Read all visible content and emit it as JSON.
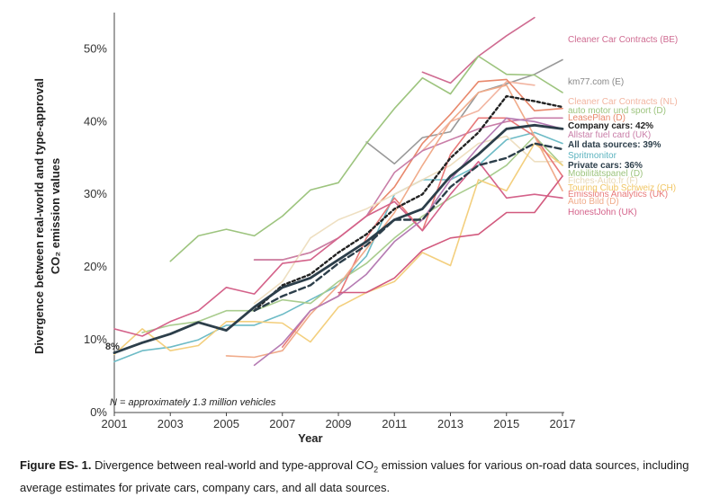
{
  "caption": {
    "label": "Figure ES- 1.",
    "text_before": "Divergence between real-world and type-approval CO",
    "subscript": "2",
    "text_after": " emission values for various on-road data sources, including average estimates for private cars, company cars, and all data sources."
  },
  "chart_data": {
    "type": "line",
    "xlabel": "Year",
    "ylabel_line1": "Divergence between real-world and type-approval",
    "ylabel_line2": "CO₂ emission values",
    "ylim": [
      0,
      54
    ],
    "xlim": [
      2001,
      2017
    ],
    "yticks": [
      0,
      10,
      20,
      30,
      40,
      50
    ],
    "ytick_labels": [
      "0%",
      "10%",
      "20%",
      "30%",
      "40%",
      "50%"
    ],
    "xticks": [
      2001,
      2003,
      2005,
      2007,
      2009,
      2011,
      2013,
      2015,
      2017
    ],
    "grid": false,
    "note": "N = approximately 1.3 million vehicles",
    "start_label": "8%",
    "series": [
      {
        "name": "Cleaner Car Contracts (BE)",
        "color": "#cf6b91",
        "width": 1.6,
        "dash": "",
        "bold": false,
        "x": [
          2012,
          2013,
          2014,
          2015,
          2016
        ],
        "values": [
          46.8,
          45.3,
          49.0,
          51.8,
          54.3
        ]
      },
      {
        "name": "km77.com (E)",
        "color": "#999999",
        "width": 1.6,
        "dash": "",
        "bold": false,
        "x": [
          2010,
          2011,
          2012,
          2013,
          2014,
          2015,
          2016,
          2017
        ],
        "values": [
          37.2,
          34.2,
          37.8,
          38.6,
          44.0,
          45.2,
          46.5,
          48.5
        ]
      },
      {
        "name": "Cleaner Car Contracts (NL)",
        "color": "#f2b5a1",
        "width": 1.6,
        "dash": "",
        "bold": false,
        "x": [
          2012,
          2013,
          2014,
          2015,
          2016
        ],
        "values": [
          36.0,
          40.0,
          41.5,
          45.5,
          45.0
        ]
      },
      {
        "name": "auto motor und sport (D)",
        "color": "#9dc47e",
        "width": 1.6,
        "dash": "",
        "bold": false,
        "x": [
          2003,
          2004,
          2005,
          2006,
          2007,
          2008,
          2009,
          2010,
          2011,
          2012,
          2013,
          2014,
          2015,
          2016,
          2017
        ],
        "values": [
          20.8,
          24.3,
          25.2,
          24.3,
          27.0,
          30.6,
          31.6,
          37.0,
          41.8,
          46.0,
          43.8,
          49.0,
          46.5,
          46.4,
          44.0
        ]
      },
      {
        "name": "LeasePlan (D)",
        "color": "#e8886c",
        "width": 1.6,
        "dash": "",
        "bold": false,
        "x": [
          2006,
          2007,
          2008,
          2009,
          2010,
          2011,
          2012,
          2013,
          2014,
          2015,
          2016,
          2017
        ],
        "values": [
          21.0,
          21.0,
          22.0,
          24.0,
          27.0,
          31.0,
          37.0,
          41.0,
          45.5,
          45.8,
          41.5,
          41.8
        ]
      },
      {
        "name": "Company cars: 42%",
        "color": "#222222",
        "width": 2.4,
        "dash": "3,3",
        "bold": true,
        "x": [
          2006,
          2007,
          2008,
          2009,
          2010,
          2011,
          2012,
          2013,
          2014,
          2015,
          2016,
          2017
        ],
        "values": [
          14.0,
          17.5,
          19.0,
          22.0,
          24.5,
          28.0,
          30.0,
          35.0,
          38.5,
          43.5,
          42.8,
          42.0
        ]
      },
      {
        "name": "Allstar fuel card (UK)",
        "color": "#c97ea8",
        "width": 1.6,
        "dash": "",
        "bold": false,
        "x": [
          2006,
          2007,
          2008,
          2009,
          2010,
          2011,
          2012,
          2013,
          2014,
          2015,
          2016,
          2017
        ],
        "values": [
          21.0,
          21.0,
          22.0,
          24.0,
          27.0,
          33.0,
          36.0,
          37.5,
          39.0,
          40.0,
          40.5,
          40.5
        ]
      },
      {
        "name": "All data sources: 39%",
        "color": "#2c3e4a",
        "width": 2.8,
        "dash": "",
        "bold": true,
        "x": [
          2001,
          2002,
          2003,
          2004,
          2005,
          2006,
          2007,
          2008,
          2009,
          2010,
          2011,
          2012,
          2013,
          2014,
          2015,
          2016,
          2017
        ],
        "values": [
          8.2,
          9.6,
          10.8,
          12.4,
          11.3,
          14.5,
          17.2,
          18.5,
          21.0,
          23.5,
          26.5,
          28.0,
          32.5,
          35.5,
          39.0,
          39.5,
          39.0
        ]
      },
      {
        "name": "Spritmonitor",
        "color": "#6dbbc6",
        "width": 1.6,
        "dash": "",
        "bold": false,
        "x": [
          2001,
          2002,
          2003,
          2004,
          2005,
          2006,
          2007,
          2008,
          2009,
          2010,
          2011,
          2012,
          2013,
          2014,
          2015,
          2016,
          2017
        ],
        "values": [
          7.0,
          8.5,
          9.0,
          10.0,
          12.0,
          12.0,
          13.5,
          15.5,
          17.5,
          21.5,
          30.0,
          32.0,
          32.0,
          34.0,
          37.5,
          38.5,
          37.0
        ]
      },
      {
        "name": "Private cars: 36%",
        "color": "#2c3e4a",
        "width": 2.4,
        "dash": "7,4",
        "bold": true,
        "x": [
          2006,
          2007,
          2008,
          2009,
          2010,
          2011,
          2012,
          2013,
          2014,
          2015,
          2016,
          2017
        ],
        "values": [
          14.0,
          16.0,
          17.5,
          20.5,
          23.0,
          26.5,
          26.5,
          31.0,
          34.0,
          35.0,
          37.0,
          36.2
        ]
      },
      {
        "name": "Mobilitätspanel (D)",
        "color": "#a9cc8e",
        "width": 1.6,
        "dash": "",
        "bold": false,
        "x": [
          2002,
          2003,
          2004,
          2005,
          2006,
          2007,
          2008,
          2009,
          2010,
          2011,
          2012,
          2013,
          2014,
          2015,
          2016,
          2017
        ],
        "values": [
          11.0,
          12.0,
          12.5,
          14.0,
          14.0,
          15.5,
          15.0,
          18.0,
          20.5,
          24.0,
          27.0,
          29.5,
          31.5,
          34.0,
          38.0,
          34.0
        ]
      },
      {
        "name": "Fiches-Auto.fr (F)",
        "color": "#eedfc1",
        "width": 1.6,
        "dash": "",
        "bold": false,
        "x": [
          2006,
          2007,
          2008,
          2009,
          2010,
          2011,
          2012,
          2013,
          2014,
          2015,
          2016,
          2017
        ],
        "values": [
          15.0,
          18.0,
          24.0,
          26.5,
          28.0,
          30.0,
          32.0,
          34.0,
          37.0,
          38.0,
          34.5,
          34.5
        ]
      },
      {
        "name": "Touring Club Schweiz (CH)",
        "color": "#f3cf7e",
        "width": 1.6,
        "dash": "",
        "bold": false,
        "x": [
          2001,
          2002,
          2003,
          2004,
          2005,
          2006,
          2007,
          2008,
          2009,
          2010,
          2011,
          2012,
          2013,
          2014,
          2015,
          2016,
          2017
        ],
        "values": [
          8.0,
          11.5,
          8.5,
          9.2,
          12.5,
          12.5,
          12.3,
          9.7,
          14.5,
          16.5,
          18.0,
          22.0,
          20.2,
          32.0,
          30.5,
          37.0,
          34.0
        ]
      },
      {
        "name": "Emissions Analytics (UK)",
        "color": "#e87a7a",
        "width": 1.6,
        "dash": "",
        "bold": false,
        "x": [
          2007,
          2008,
          2009,
          2010,
          2011,
          2012,
          2013,
          2014,
          2015,
          2016,
          2017
        ],
        "values": [
          9.0,
          14.0,
          16.0,
          24.0,
          29.5,
          25.0,
          35.5,
          40.5,
          40.5,
          38.0,
          32.5
        ]
      },
      {
        "name": "Auto Bild (D)",
        "color": "#f0ab8a",
        "width": 1.6,
        "dash": "",
        "bold": false,
        "x": [
          2005,
          2006,
          2007,
          2008,
          2009,
          2010,
          2011,
          2012,
          2013,
          2014,
          2015,
          2016,
          2017
        ],
        "values": [
          7.8,
          7.6,
          8.5,
          13.5,
          17.5,
          22.5,
          27.5,
          34.0,
          40.0,
          44.0,
          45.0,
          38.0,
          30.5
        ]
      },
      {
        "name": "HonestJohn (UK)",
        "color": "#d4628a",
        "width": 1.6,
        "dash": "",
        "bold": false,
        "x": [
          2001,
          2002,
          2003,
          2004,
          2005,
          2006,
          2007,
          2008,
          2009,
          2010,
          2011,
          2012,
          2013,
          2014,
          2015,
          2016,
          2017
        ],
        "values": [
          11.5,
          10.5,
          12.5,
          14.0,
          17.2,
          16.3,
          20.5,
          21.0,
          24.0,
          27.0,
          29.0,
          25.0,
          30.0,
          34.5,
          29.5,
          30.0,
          29.5
        ]
      },
      {
        "name": "",
        "color": "#b57bb3",
        "width": 1.6,
        "dash": "",
        "bold": false,
        "x": [
          2006,
          2007,
          2008,
          2009,
          2010,
          2011,
          2012,
          2013,
          2014,
          2015,
          2016,
          2017
        ],
        "values": [
          6.5,
          9.5,
          14.0,
          16.0,
          19.0,
          23.5,
          26.5,
          32.0,
          36.5,
          40.5,
          40.0,
          39.0
        ]
      },
      {
        "name": "",
        "color": "#d25a7e",
        "width": 1.6,
        "dash": "",
        "bold": false,
        "x": [
          2009,
          2010,
          2011,
          2012,
          2013,
          2014,
          2015,
          2016,
          2017
        ],
        "values": [
          16.5,
          16.5,
          18.5,
          22.3,
          24.0,
          24.5,
          27.5,
          27.5,
          32.5
        ]
      }
    ],
    "label_positions_note": "labels placed to right of plot",
    "label_list": [
      {
        "name": "Cleaner Car Contracts (BE)",
        "color": "#cf6b91",
        "bold": false
      },
      {
        "name": "km77.com (E)",
        "color": "#888888",
        "bold": false
      },
      {
        "name": "Cleaner Car Contracts (NL)",
        "color": "#f2b5a1",
        "bold": false
      },
      {
        "name": "auto motor und sport (D)",
        "color": "#9dc47e",
        "bold": false
      },
      {
        "name": "LeasePlan (D)",
        "color": "#e8886c",
        "bold": false
      },
      {
        "name": "Company cars: 42%",
        "color": "#222222",
        "bold": true
      },
      {
        "name": "Allstar fuel card (UK)",
        "color": "#c97ea8",
        "bold": false
      },
      {
        "name": "All data sources: 39%",
        "color": "#2c3e4a",
        "bold": true
      },
      {
        "name": "Spritmonitor",
        "color": "#5bb3bf",
        "bold": false
      },
      {
        "name": "Private cars: 36%",
        "color": "#2c3e4a",
        "bold": true
      },
      {
        "name": "Mobilitätspanel (D)",
        "color": "#9dc47e",
        "bold": false
      },
      {
        "name": "Fiches-Auto.fr (F)",
        "color": "#e8d8b6",
        "bold": false
      },
      {
        "name": "Touring Club Schweiz (CH)",
        "color": "#f1c664",
        "bold": false
      },
      {
        "name": "Emissions Analytics (UK)",
        "color": "#e87a7a",
        "bold": false
      },
      {
        "name": "Auto Bild (D)",
        "color": "#f0ab8a",
        "bold": false
      },
      {
        "name": "HonestJohn (UK)",
        "color": "#d4628a",
        "bold": false
      }
    ]
  }
}
